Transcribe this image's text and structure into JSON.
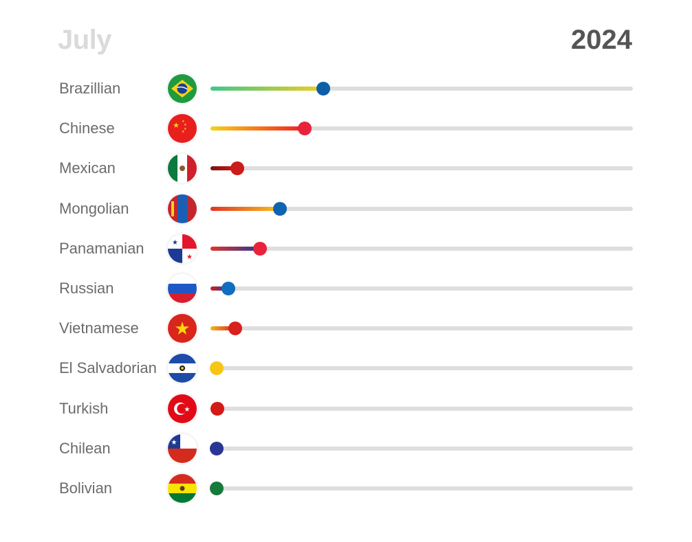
{
  "header": {
    "month": "July",
    "year": "2024"
  },
  "chart_data": {
    "type": "bar",
    "orientation": "horizontal",
    "xlim": [
      0,
      100
    ],
    "categories": [
      "Brazillian",
      "Chinese",
      "Mexican",
      "Mongolian",
      "Panamanian",
      "Russian",
      "Vietnamese",
      "El Salvadorian",
      "Turkish",
      "Chilean",
      "Bolivian"
    ],
    "values": [
      26.7,
      22.3,
      6.3,
      16.4,
      11.8,
      4.3,
      5.8,
      1.4,
      1.6,
      1.4,
      1.5
    ],
    "flags": [
      "brazil-flag-icon",
      "china-flag-icon",
      "mexico-flag-icon",
      "mongolia-flag-icon",
      "panama-flag-icon",
      "russia-flag-icon",
      "vietnam-flag-icon",
      "el-salvador-flag-icon",
      "turkey-flag-icon",
      "chile-flag-icon",
      "bolivia-flag-icon"
    ],
    "dot_colors": [
      "#0f5fa8",
      "#e8233b",
      "#cc1b1b",
      "#0f63b0",
      "#e8233b",
      "#0f6ec0",
      "#d8201f",
      "#f7c514",
      "#d21a16",
      "#2a3597",
      "#167a3a"
    ],
    "gradients": [
      [
        "#3ec88a",
        "#f1cd1e"
      ],
      [
        "#f6d21a",
        "#f0201f"
      ],
      [
        "#7a1410",
        "#d01c17"
      ],
      [
        "#e13327",
        "#f7c21c"
      ],
      [
        "#e2332f",
        "#2b3890"
      ],
      [
        "#d01e25",
        "#2d3c98"
      ],
      [
        "#f3b81e",
        "#d8201f"
      ],
      [
        "#f7c514",
        "#f7c514"
      ],
      [
        "#d21a16",
        "#d21a16"
      ],
      [
        "#2a3597",
        "#2a3597"
      ],
      [
        "#167a3a",
        "#167a3a"
      ]
    ]
  }
}
